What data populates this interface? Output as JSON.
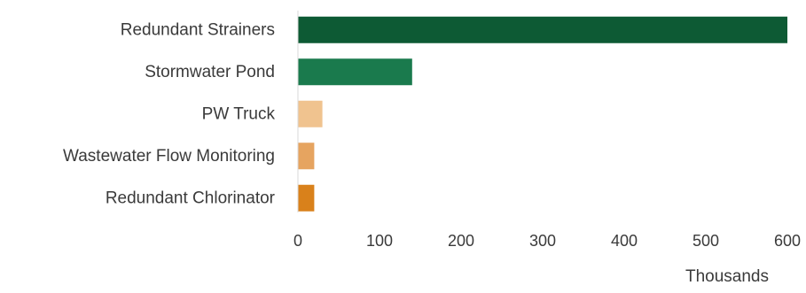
{
  "chart_data": {
    "type": "bar",
    "orientation": "horizontal",
    "categories": [
      "Redundant Strainers",
      "Stormwater Pond",
      "PW Truck",
      "Wastewater Flow Monitoring",
      "Redundant Chlorinator"
    ],
    "values": [
      600,
      140,
      30,
      20,
      20
    ],
    "colors": [
      "#0d5a34",
      "#1a7a4d",
      "#f0c38f",
      "#e6a460",
      "#d9811b"
    ],
    "xlabel": "Thousands",
    "xlim": [
      0,
      600
    ],
    "xticks": [
      0,
      100,
      200,
      300,
      400,
      500,
      600
    ],
    "tick_labels": [
      "0",
      "100",
      "200",
      "300",
      "400",
      "500",
      "600"
    ],
    "grid": false,
    "legend": "none"
  }
}
